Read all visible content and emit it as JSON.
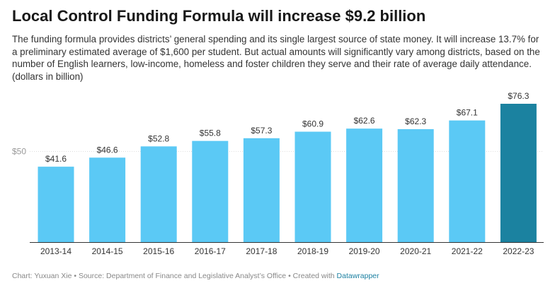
{
  "title": "Local Control Funding Formula will increase $9.2 billion",
  "description": "The funding formula provides districts’ general spending and its single largest source of state money. It will increase 13.7% for a preliminary estimated average of $1,600 per student. But actual amounts will significantly vary among districts, based on the number of English learners, low-income, homeless and foster children they serve and their rate of average daily attendance. (dollars in billion)",
  "footer": {
    "text": "Chart: Yuxuan Xie • Source: Department of Finance and Legislative Analyst’s Office • Created with ",
    "tool": "Datawrapper"
  },
  "chart_data": {
    "type": "bar",
    "categories": [
      "2013-14",
      "2014-15",
      "2015-16",
      "2016-17",
      "2017-18",
      "2018-19",
      "2019-20",
      "2020-21",
      "2021-22",
      "2022-23"
    ],
    "values": [
      41.6,
      46.6,
      52.8,
      55.8,
      57.3,
      60.9,
      62.6,
      62.3,
      67.1,
      76.3
    ],
    "value_labels": [
      "$41.6",
      "$46.6",
      "$52.8",
      "$55.8",
      "$57.3",
      "$60.9",
      "$62.6",
      "$62.3",
      "$67.1",
      "$76.3"
    ],
    "y_ticks": [
      {
        "value": 50,
        "label": "$50"
      }
    ],
    "ylim": [
      0,
      76.3
    ],
    "grid": true,
    "colors": {
      "bar": "#5bc9f5",
      "highlight": "#1b82a0",
      "highlight_index": 9
    }
  }
}
